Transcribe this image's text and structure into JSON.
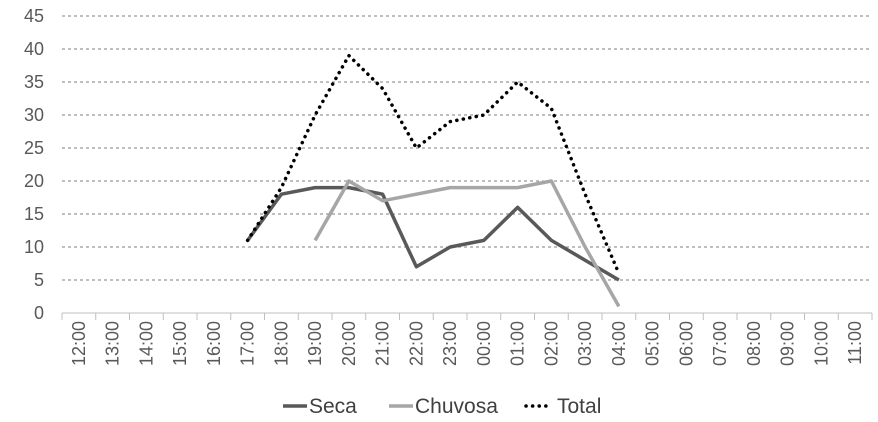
{
  "chart_data": {
    "type": "line",
    "title": "",
    "xlabel": "",
    "ylabel": "",
    "categories": [
      "12:00",
      "13:00",
      "14:00",
      "15:00",
      "16:00",
      "17:00",
      "18:00",
      "19:00",
      "20:00",
      "21:00",
      "22:00",
      "23:00",
      "00:00",
      "01:00",
      "02:00",
      "03:00",
      "04:00",
      "05:00",
      "06:00",
      "07:00",
      "08:00",
      "09:00",
      "10:00",
      "11:00"
    ],
    "ylim": [
      0,
      45
    ],
    "yticks": [
      "0",
      "5",
      "10",
      "15",
      "20",
      "25",
      "30",
      "35",
      "40",
      "45"
    ],
    "grid": true,
    "legend_position": "bottom",
    "series": [
      {
        "name": "Seca",
        "color": "#595959",
        "style": "solid",
        "values": [
          null,
          null,
          null,
          null,
          null,
          11,
          18,
          19,
          19,
          18,
          7,
          10,
          11,
          16,
          11,
          8,
          5,
          null,
          null,
          null,
          null,
          null,
          null,
          null
        ]
      },
      {
        "name": "Chuvosa",
        "color": "#a6a6a6",
        "style": "solid",
        "values": [
          null,
          null,
          null,
          null,
          null,
          null,
          null,
          11,
          20,
          17,
          18,
          19,
          19,
          19,
          20,
          10,
          1,
          null,
          null,
          null,
          null,
          null,
          null,
          null
        ]
      },
      {
        "name": "Total",
        "color": "#000000",
        "style": "dotted",
        "values": [
          null,
          null,
          null,
          null,
          null,
          11,
          19,
          30,
          39,
          34,
          25,
          29,
          30,
          35,
          31,
          18,
          6,
          null,
          null,
          null,
          null,
          null,
          null,
          null
        ]
      }
    ]
  }
}
